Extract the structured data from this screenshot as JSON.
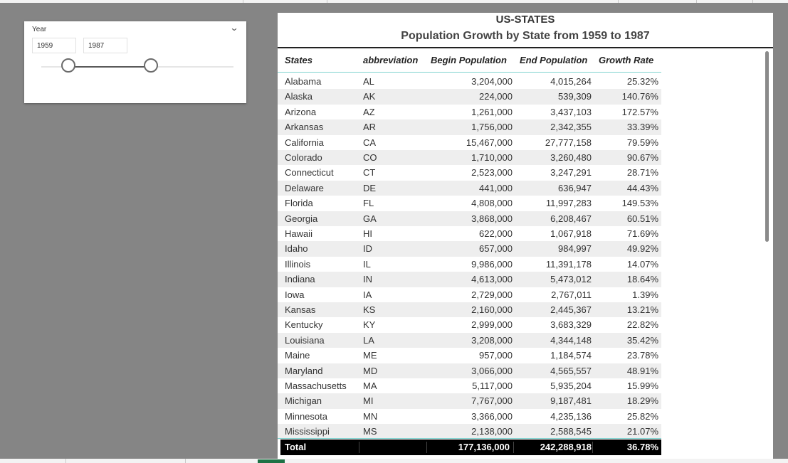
{
  "slicer": {
    "title": "Year",
    "start_year": "1959",
    "end_year": "1987"
  },
  "visual": {
    "title": "US-STATES",
    "subtitle": "Population Growth by State from 1959 to 1987",
    "columns": [
      "States",
      "abbreviation",
      "Begin Population",
      "End Population",
      "Growth Rate"
    ],
    "rows": [
      [
        "Alabama",
        "AL",
        "3,204,000",
        "4,015,264",
        "25.32%"
      ],
      [
        "Alaska",
        "AK",
        "224,000",
        "539,309",
        "140.76%"
      ],
      [
        "Arizona",
        "AZ",
        "1,261,000",
        "3,437,103",
        "172.57%"
      ],
      [
        "Arkansas",
        "AR",
        "1,756,000",
        "2,342,355",
        "33.39%"
      ],
      [
        "California",
        "CA",
        "15,467,000",
        "27,777,158",
        "79.59%"
      ],
      [
        "Colorado",
        "CO",
        "1,710,000",
        "3,260,480",
        "90.67%"
      ],
      [
        "Connecticut",
        "CT",
        "2,523,000",
        "3,247,291",
        "28.71%"
      ],
      [
        "Delaware",
        "DE",
        "441,000",
        "636,947",
        "44.43%"
      ],
      [
        "Florida",
        "FL",
        "4,808,000",
        "11,997,283",
        "149.53%"
      ],
      [
        "Georgia",
        "GA",
        "3,868,000",
        "6,208,467",
        "60.51%"
      ],
      [
        "Hawaii",
        "HI",
        "622,000",
        "1,067,918",
        "71.69%"
      ],
      [
        "Idaho",
        "ID",
        "657,000",
        "984,997",
        "49.92%"
      ],
      [
        "Illinois",
        "IL",
        "9,986,000",
        "11,391,178",
        "14.07%"
      ],
      [
        "Indiana",
        "IN",
        "4,613,000",
        "5,473,012",
        "18.64%"
      ],
      [
        "Iowa",
        "IA",
        "2,729,000",
        "2,767,011",
        "1.39%"
      ],
      [
        "Kansas",
        "KS",
        "2,160,000",
        "2,445,367",
        "13.21%"
      ],
      [
        "Kentucky",
        "KY",
        "2,999,000",
        "3,683,329",
        "22.82%"
      ],
      [
        "Louisiana",
        "LA",
        "3,208,000",
        "4,344,148",
        "35.42%"
      ],
      [
        "Maine",
        "ME",
        "957,000",
        "1,184,574",
        "23.78%"
      ],
      [
        "Maryland",
        "MD",
        "3,066,000",
        "4,565,557",
        "48.91%"
      ],
      [
        "Massachusetts",
        "MA",
        "5,117,000",
        "5,935,204",
        "15.99%"
      ],
      [
        "Michigan",
        "MI",
        "7,767,000",
        "9,187,481",
        "18.29%"
      ],
      [
        "Minnesota",
        "MN",
        "3,366,000",
        "4,235,136",
        "25.82%"
      ],
      [
        "Mississippi",
        "MS",
        "2,138,000",
        "2,588,545",
        "21.07%"
      ]
    ],
    "total": {
      "label": "Total",
      "begin": "177,136,000",
      "end": "242,288,918",
      "growth": "36.78%"
    }
  }
}
